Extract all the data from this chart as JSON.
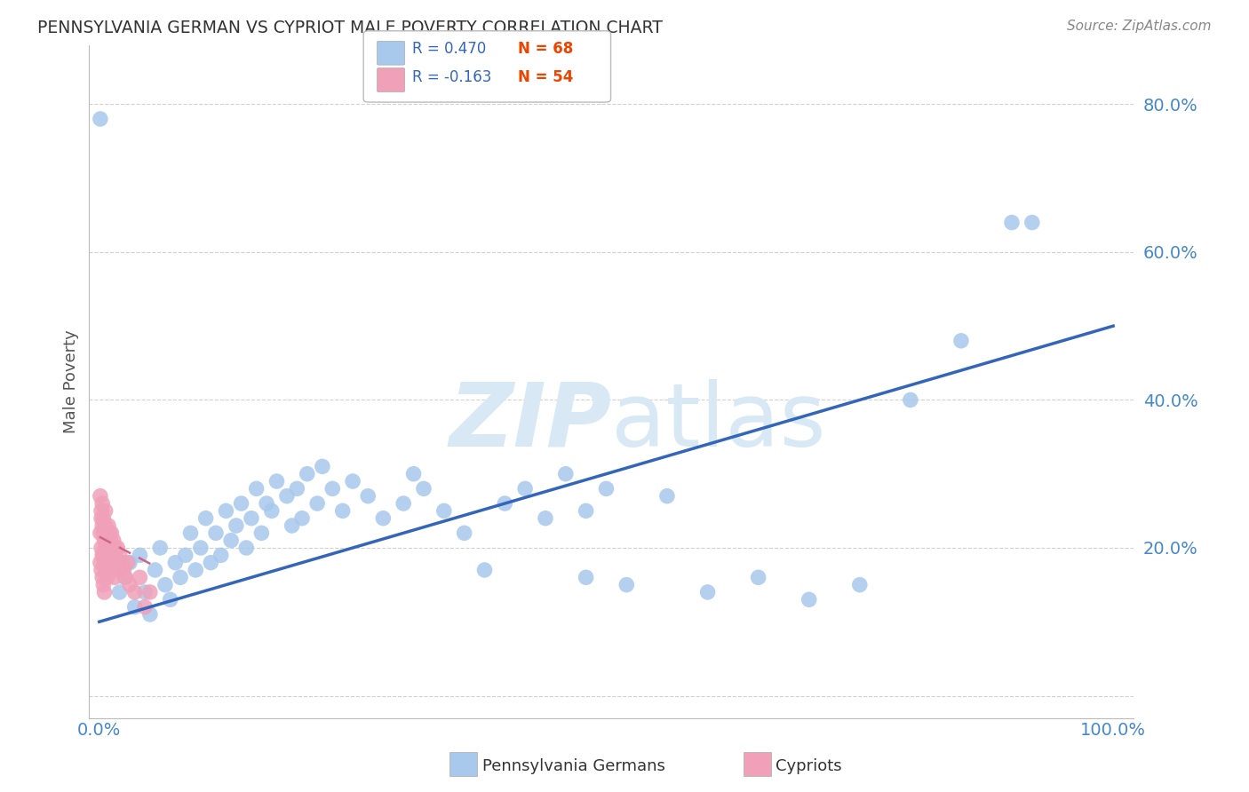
{
  "title": "PENNSYLVANIA GERMAN VS CYPRIOT MALE POVERTY CORRELATION CHART",
  "source": "Source: ZipAtlas.com",
  "ylabel": "Male Poverty",
  "r_pennsylvania": 0.47,
  "n_pennsylvania": 68,
  "r_cypriot": -0.163,
  "n_cypriot": 54,
  "blue_color": "#A8C8EC",
  "blue_line_color": "#3366BB",
  "pink_color": "#F0A0B8",
  "pink_line_color": "#CC6688",
  "pink_line_dash": [
    6,
    4
  ],
  "background_color": "#ffffff",
  "grid_color": "#cccccc",
  "watermark_color": "#D8E8F4",
  "ytick_color": "#4488CC",
  "xtick_color": "#4488CC",
  "legend_text_r_color": "#3366BB",
  "legend_text_n_color": "#EE4400",
  "pa_x": [
    0.02,
    0.025,
    0.03,
    0.035,
    0.04,
    0.045,
    0.05,
    0.055,
    0.06,
    0.065,
    0.07,
    0.075,
    0.08,
    0.085,
    0.09,
    0.095,
    0.1,
    0.105,
    0.11,
    0.115,
    0.12,
    0.125,
    0.13,
    0.135,
    0.14,
    0.145,
    0.15,
    0.155,
    0.16,
    0.165,
    0.17,
    0.175,
    0.185,
    0.19,
    0.195,
    0.2,
    0.205,
    0.215,
    0.22,
    0.23,
    0.24,
    0.25,
    0.265,
    0.28,
    0.3,
    0.31,
    0.32,
    0.34,
    0.36,
    0.38,
    0.4,
    0.42,
    0.44,
    0.46,
    0.48,
    0.5,
    0.52,
    0.56,
    0.6,
    0.65,
    0.7,
    0.75,
    0.8,
    0.85,
    0.9,
    0.92,
    0.001,
    0.48
  ],
  "pa_y": [
    0.14,
    0.16,
    0.18,
    0.12,
    0.19,
    0.14,
    0.11,
    0.17,
    0.2,
    0.15,
    0.13,
    0.18,
    0.16,
    0.19,
    0.22,
    0.17,
    0.2,
    0.24,
    0.18,
    0.22,
    0.19,
    0.25,
    0.21,
    0.23,
    0.26,
    0.2,
    0.24,
    0.28,
    0.22,
    0.26,
    0.25,
    0.29,
    0.27,
    0.23,
    0.28,
    0.24,
    0.3,
    0.26,
    0.31,
    0.28,
    0.25,
    0.29,
    0.27,
    0.24,
    0.26,
    0.3,
    0.28,
    0.25,
    0.22,
    0.17,
    0.26,
    0.28,
    0.24,
    0.3,
    0.16,
    0.28,
    0.15,
    0.27,
    0.14,
    0.16,
    0.13,
    0.15,
    0.4,
    0.48,
    0.64,
    0.64,
    0.78,
    0.25
  ],
  "cy_x": [
    0.001,
    0.001,
    0.001,
    0.002,
    0.002,
    0.002,
    0.002,
    0.003,
    0.003,
    0.003,
    0.003,
    0.004,
    0.004,
    0.004,
    0.004,
    0.005,
    0.005,
    0.005,
    0.006,
    0.006,
    0.006,
    0.006,
    0.007,
    0.007,
    0.008,
    0.008,
    0.008,
    0.009,
    0.009,
    0.01,
    0.01,
    0.011,
    0.011,
    0.012,
    0.012,
    0.013,
    0.013,
    0.014,
    0.015,
    0.015,
    0.016,
    0.017,
    0.018,
    0.019,
    0.02,
    0.022,
    0.024,
    0.026,
    0.028,
    0.03,
    0.035,
    0.04,
    0.045,
    0.05
  ],
  "cy_y": [
    0.27,
    0.22,
    0.18,
    0.25,
    0.2,
    0.17,
    0.24,
    0.23,
    0.19,
    0.16,
    0.26,
    0.22,
    0.19,
    0.15,
    0.24,
    0.21,
    0.18,
    0.14,
    0.23,
    0.2,
    0.17,
    0.25,
    0.21,
    0.18,
    0.22,
    0.19,
    0.16,
    0.23,
    0.2,
    0.22,
    0.18,
    0.21,
    0.17,
    0.22,
    0.19,
    0.2,
    0.17,
    0.21,
    0.19,
    0.16,
    0.2,
    0.18,
    0.2,
    0.17,
    0.19,
    0.18,
    0.17,
    0.16,
    0.18,
    0.15,
    0.14,
    0.16,
    0.12,
    0.14
  ],
  "blue_line_x": [
    0.0,
    1.0
  ],
  "blue_line_y": [
    0.1,
    0.5
  ],
  "pink_line_x": [
    0.0,
    0.055
  ],
  "pink_line_y": [
    0.215,
    0.175
  ],
  "xlim": [
    -0.01,
    1.02
  ],
  "ylim": [
    -0.03,
    0.88
  ],
  "yticks": [
    0.0,
    0.2,
    0.4,
    0.6,
    0.8
  ],
  "ytick_labels": [
    "",
    "20.0%",
    "40.0%",
    "60.0%",
    "80.0%"
  ],
  "xticks": [
    0.0,
    0.25,
    0.5,
    0.75,
    1.0
  ],
  "xtick_labels": [
    "0.0%",
    "",
    "",
    "",
    "100.0%"
  ]
}
